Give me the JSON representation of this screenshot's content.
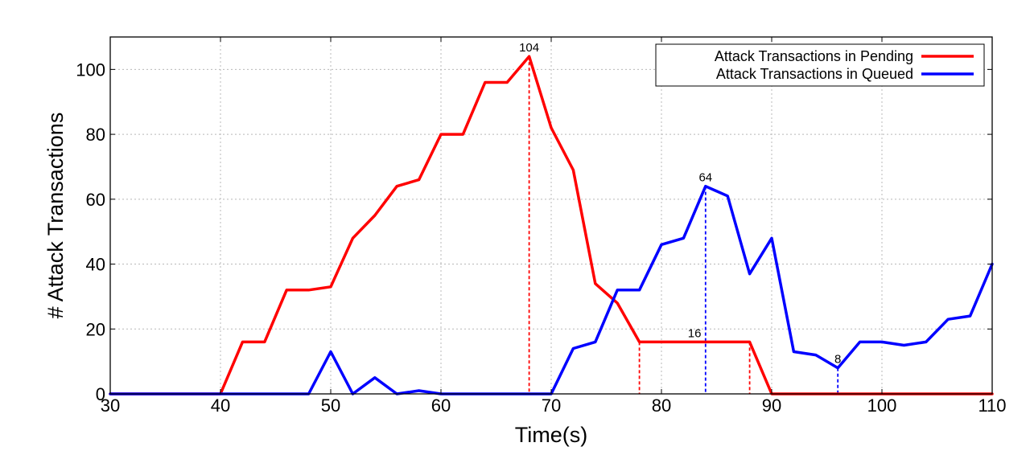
{
  "chart_data": {
    "type": "line",
    "xlabel": "Time(s)",
    "ylabel": "# Attack Transactions",
    "xlim": [
      30,
      110
    ],
    "ylim": [
      0,
      110
    ],
    "xticks": [
      30,
      40,
      50,
      60,
      70,
      80,
      90,
      100,
      110
    ],
    "yticks": [
      0,
      20,
      40,
      60,
      80,
      100
    ],
    "grid": true,
    "legend": "top-right",
    "series": [
      {
        "name": "Attack Transactions in Pending",
        "color": "#ff0000",
        "points": [
          [
            30,
            0
          ],
          [
            32,
            0
          ],
          [
            34,
            0
          ],
          [
            36,
            0
          ],
          [
            38,
            0
          ],
          [
            40,
            0
          ],
          [
            42,
            16
          ],
          [
            44,
            16
          ],
          [
            46,
            32
          ],
          [
            48,
            32
          ],
          [
            50,
            33
          ],
          [
            52,
            48
          ],
          [
            54,
            55
          ],
          [
            56,
            64
          ],
          [
            58,
            66
          ],
          [
            60,
            80
          ],
          [
            62,
            80
          ],
          [
            64,
            96
          ],
          [
            66,
            96
          ],
          [
            68,
            104
          ],
          [
            70,
            82
          ],
          [
            72,
            69
          ],
          [
            74,
            34
          ],
          [
            76,
            28
          ],
          [
            78,
            16
          ],
          [
            80,
            16
          ],
          [
            82,
            16
          ],
          [
            84,
            16
          ],
          [
            86,
            16
          ],
          [
            88,
            16
          ],
          [
            90,
            0
          ],
          [
            92,
            0
          ],
          [
            94,
            0
          ],
          [
            96,
            0
          ],
          [
            98,
            0
          ],
          [
            100,
            0
          ],
          [
            102,
            0
          ],
          [
            104,
            0
          ],
          [
            106,
            0
          ],
          [
            108,
            0
          ],
          [
            110,
            0
          ]
        ]
      },
      {
        "name": "Attack Transactions in Queued",
        "color": "#0000ff",
        "points": [
          [
            30,
            0
          ],
          [
            32,
            0
          ],
          [
            34,
            0
          ],
          [
            36,
            0
          ],
          [
            38,
            0
          ],
          [
            40,
            0
          ],
          [
            42,
            0
          ],
          [
            44,
            0
          ],
          [
            46,
            0
          ],
          [
            48,
            0
          ],
          [
            50,
            13
          ],
          [
            52,
            0
          ],
          [
            54,
            5
          ],
          [
            56,
            0
          ],
          [
            58,
            1
          ],
          [
            60,
            0
          ],
          [
            62,
            0
          ],
          [
            64,
            0
          ],
          [
            66,
            0
          ],
          [
            68,
            0
          ],
          [
            70,
            0
          ],
          [
            72,
            14
          ],
          [
            74,
            16
          ],
          [
            76,
            32
          ],
          [
            78,
            32
          ],
          [
            80,
            46
          ],
          [
            82,
            48
          ],
          [
            84,
            64
          ],
          [
            86,
            61
          ],
          [
            88,
            37
          ],
          [
            90,
            48
          ],
          [
            92,
            13
          ],
          [
            94,
            12
          ],
          [
            96,
            8
          ],
          [
            98,
            16
          ],
          [
            100,
            16
          ],
          [
            102,
            15
          ],
          [
            104,
            16
          ],
          [
            106,
            23
          ],
          [
            108,
            24
          ],
          [
            110,
            40
          ]
        ]
      }
    ],
    "annotations": [
      {
        "x": 68,
        "y": 104,
        "label": "104",
        "color": "#ff0000"
      },
      {
        "x": 84,
        "y": 64,
        "label": "64",
        "color": "#0000ff"
      },
      {
        "x": 96,
        "y": 8,
        "label": "8",
        "color": "#0000ff"
      },
      {
        "x": 83,
        "y": 16,
        "label": "16",
        "color": "#ff0000"
      }
    ],
    "guide_lines": [
      {
        "x": 68,
        "y": 104,
        "color": "#ff0000"
      },
      {
        "x": 78,
        "y": 16,
        "color": "#ff0000"
      },
      {
        "x": 88,
        "y": 16,
        "color": "#ff0000"
      },
      {
        "x": 84,
        "y": 64,
        "color": "#0000ff"
      },
      {
        "x": 96,
        "y": 8,
        "color": "#0000ff"
      }
    ]
  }
}
